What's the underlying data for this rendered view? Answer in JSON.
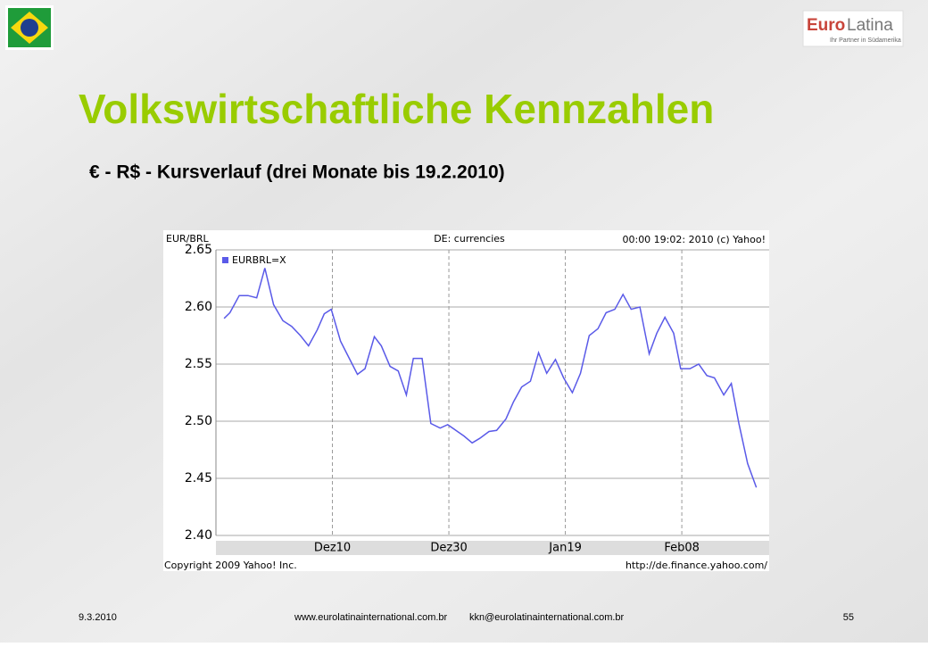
{
  "slide": {
    "title": "Volkswirtschaftliche Kennzahlen",
    "subtitle": "€ - R$ - Kursverlauf (drei Monate bis 19.2.2010)",
    "logo": {
      "brand_a": "Euro",
      "brand_b": "Latina",
      "tagline": "Ihr Partner in Südamerika"
    },
    "footer": {
      "date": "9.3.2010",
      "website": "www.eurolatinainternational.com.br",
      "email": "kkn@eurolatinainternational.com.br",
      "page": "55"
    }
  },
  "chart_data": {
    "type": "line",
    "header_left": "EUR/BRL",
    "header_center": "DE: currencies",
    "header_right": "00:00 19:02: 2010 (c) Yahoo!",
    "footer_left": "Copyright 2009 Yahoo! Inc.",
    "footer_right": "http://de.finance.yahoo.com/",
    "x": [
      1.4,
      2.4,
      4.0,
      5.5,
      7.0,
      8.4,
      9.9,
      11.5,
      13.0,
      14.5,
      15.9,
      17.4,
      18.6,
      19.8,
      21.4,
      22.9,
      24.3,
      25.6,
      27.2,
      28.4,
      29.9,
      31.3,
      32.7,
      33.9,
      35.4,
      36.9,
      38.5,
      39.8,
      41.2,
      42.6,
      44.0,
      45.3,
      46.9,
      48.2,
      49.8,
      51.1,
      52.5,
      54.0,
      55.4,
      56.8,
      58.3,
      59.7,
      61.2,
      62.6,
      64.1,
      65.6,
      67.0,
      68.5,
      69.9,
      71.3,
      72.8,
      74.4,
      75.7,
      77.1,
      78.6,
      79.8,
      81.4,
      82.9,
      84.3,
      85.6,
      87.2,
      88.5,
      89.8,
      91.3,
      92.8
    ],
    "series": [
      {
        "name": "EURBRL=X",
        "color": "#5a5ae8",
        "values": [
          2.59,
          2.595,
          2.61,
          2.61,
          2.608,
          2.634,
          2.602,
          2.588,
          2.583,
          2.575,
          2.566,
          2.58,
          2.594,
          2.598,
          2.57,
          2.555,
          2.541,
          2.546,
          2.574,
          2.566,
          2.548,
          2.544,
          2.523,
          2.555,
          2.555,
          2.498,
          2.494,
          2.497,
          2.492,
          2.487,
          2.481,
          2.485,
          2.491,
          2.492,
          2.502,
          2.517,
          2.53,
          2.535,
          2.56,
          2.542,
          2.554,
          2.538,
          2.525,
          2.542,
          2.575,
          2.581,
          2.595,
          2.598,
          2.611,
          2.598,
          2.6,
          2.559,
          2.577,
          2.591,
          2.577,
          2.546,
          2.546,
          2.55,
          2.54,
          2.538,
          2.523,
          2.533,
          2.498,
          2.463,
          2.442
        ]
      }
    ],
    "xlim": [
      0,
      95
    ],
    "xticks": [
      {
        "value": 20,
        "label": "Dez10"
      },
      {
        "value": 40,
        "label": "Dez30"
      },
      {
        "value": 60,
        "label": "Jan19"
      },
      {
        "value": 80,
        "label": "Feb08"
      }
    ],
    "ylim": [
      2.4,
      2.65
    ],
    "yticks": [
      {
        "value": 2.4,
        "label": "2.40"
      },
      2.45,
      {
        "value": 2.5,
        "label": "2.50"
      },
      2.55,
      {
        "value": 2.6,
        "label": "2.60"
      },
      2.65
    ],
    "grid": true
  }
}
